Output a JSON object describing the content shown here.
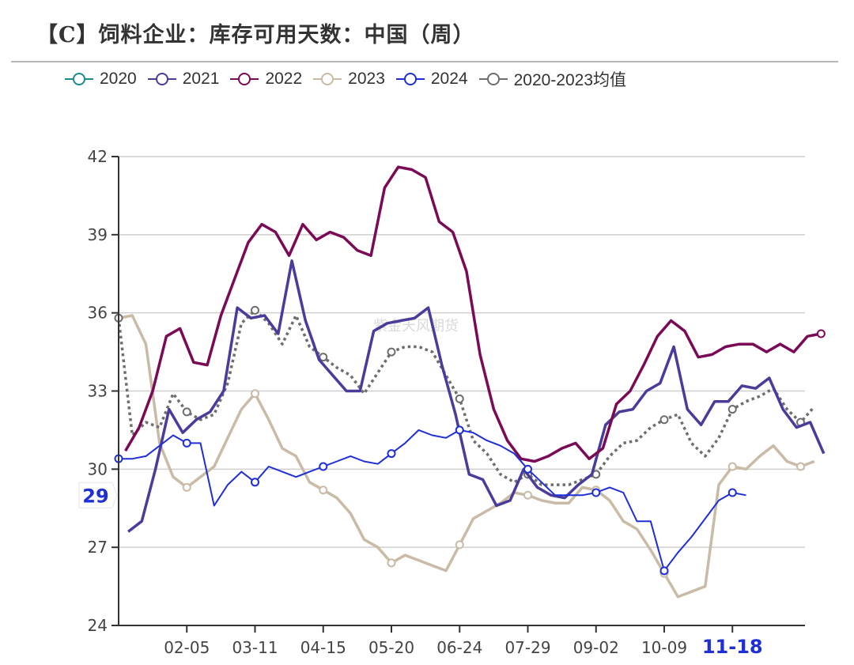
{
  "title": "【C】饲料企业：库存可用天数：中国（周）",
  "watermark": "紫金天风期货",
  "legend": [
    {
      "label": "2020",
      "color": "#1a8c8c"
    },
    {
      "label": "2021",
      "color": "#4b3b9a"
    },
    {
      "label": "2022",
      "color": "#7a0a55"
    },
    {
      "label": "2023",
      "color": "#c9bba6"
    },
    {
      "label": "2024",
      "color": "#1f2fd6"
    },
    {
      "label": "2020-2023均值",
      "color": "#6e6e6e"
    }
  ],
  "y_pointer_label": "29",
  "x_pointer_label": "11-18",
  "chart_data": {
    "type": "line",
    "title": "【C】饲料企业：库存可用天数：中国（周）",
    "xlabel": "",
    "ylabel": "",
    "ylim": [
      24,
      42
    ],
    "yticks": [
      24,
      27,
      30,
      33,
      36,
      39,
      42
    ],
    "xticks": [
      {
        "label": "02-05",
        "week": 5
      },
      {
        "label": "03-11",
        "week": 10
      },
      {
        "label": "04-15",
        "week": 15
      },
      {
        "label": "05-20",
        "week": 20
      },
      {
        "label": "06-24",
        "week": 25
      },
      {
        "label": "07-29",
        "week": 30
      },
      {
        "label": "09-02",
        "week": 35
      },
      {
        "label": "10-09",
        "week": 40
      },
      {
        "label": "11-18",
        "week": 45
      }
    ],
    "grid": true,
    "legend_position": "top",
    "series": [
      {
        "name": "2020",
        "color": "#1a8c8c",
        "width": 3,
        "dash": false,
        "start_week": 0,
        "values": []
      },
      {
        "name": "2021",
        "color": "#4b3b9a",
        "width": 3.5,
        "dash": false,
        "start_week": 0.7,
        "values": [
          27.6,
          28.0,
          30.0,
          32.3,
          31.4,
          31.9,
          32.2,
          33.0,
          36.2,
          35.8,
          35.9,
          35.2,
          38.0,
          35.7,
          34.2,
          33.6,
          33.0,
          33.0,
          35.3,
          35.6,
          35.7,
          35.8,
          36.2,
          34.0,
          32.1,
          29.8,
          29.6,
          28.6,
          28.8,
          30.0,
          29.3,
          29.0,
          28.9,
          29.4,
          29.8,
          31.7,
          32.2,
          32.3,
          33.0,
          33.3,
          34.7,
          32.3,
          31.7,
          32.6,
          32.6,
          33.2,
          33.1,
          33.5,
          32.3,
          31.6,
          31.8,
          30.6
        ]
      },
      {
        "name": "2022",
        "color": "#7a0a55",
        "width": 3.5,
        "dash": false,
        "start_week": 0.5,
        "values": [
          30.7,
          31.6,
          33.0,
          35.1,
          35.4,
          34.1,
          34.0,
          35.9,
          37.3,
          38.7,
          39.4,
          39.1,
          38.2,
          39.4,
          38.8,
          39.1,
          38.9,
          38.4,
          38.2,
          40.8,
          41.6,
          41.5,
          41.2,
          39.5,
          39.1,
          37.6,
          34.4,
          32.3,
          31.1,
          30.4,
          30.3,
          30.5,
          30.8,
          31.0,
          30.4,
          30.8,
          32.5,
          33.0,
          34.0,
          35.1,
          35.7,
          35.3,
          34.3,
          34.4,
          34.7,
          34.8,
          34.8,
          34.5,
          34.8,
          34.5,
          35.1,
          35.2
        ]
      },
      {
        "name": "2023",
        "color": "#c9bba6",
        "width": 3.5,
        "dash": false,
        "start_week": 0,
        "values": [
          35.8,
          35.9,
          34.8,
          31.0,
          29.7,
          29.3,
          29.7,
          30.1,
          31.2,
          32.3,
          32.9,
          31.9,
          30.8,
          30.5,
          29.5,
          29.2,
          28.9,
          28.3,
          27.3,
          27.0,
          26.4,
          26.7,
          26.5,
          26.3,
          26.1,
          27.1,
          28.1,
          28.4,
          28.7,
          29.1,
          29.0,
          28.8,
          28.7,
          28.7,
          29.3,
          29.2,
          28.8,
          28.0,
          27.7,
          26.9,
          26.0,
          25.1,
          25.3,
          25.5,
          29.4,
          30.1,
          30.0,
          30.5,
          30.9,
          30.3,
          30.1,
          30.3
        ]
      },
      {
        "name": "2024",
        "color": "#1f2fd6",
        "width": 2,
        "dash": false,
        "start_week": 0,
        "values": [
          30.4,
          30.4,
          30.5,
          30.9,
          31.3,
          31.0,
          31.0,
          28.6,
          29.4,
          29.9,
          29.5,
          30.1,
          29.9,
          29.7,
          29.9,
          30.1,
          30.3,
          30.5,
          30.3,
          30.2,
          30.6,
          31.0,
          31.5,
          31.3,
          31.2,
          31.5,
          31.4,
          31.1,
          30.9,
          30.6,
          30.0,
          29.5,
          29.0,
          29.0,
          29.0,
          29.1,
          29.3,
          29.1,
          28.0,
          28.0,
          26.1,
          26.8,
          27.4,
          28.1,
          28.8,
          29.1,
          29.0
        ]
      },
      {
        "name": "2020-2023均值",
        "color": "#6e6e6e",
        "width": 3.5,
        "dash": true,
        "start_week": 0,
        "values": [
          35.8,
          31.3,
          31.8,
          31.6,
          32.9,
          32.2,
          31.9,
          32.1,
          33.3,
          35.6,
          36.1,
          35.6,
          34.8,
          35.9,
          34.7,
          34.3,
          33.9,
          33.6,
          32.9,
          33.7,
          34.5,
          34.7,
          34.7,
          34.5,
          33.6,
          32.7,
          31.1,
          30.6,
          29.8,
          29.5,
          29.8,
          29.4,
          29.4,
          29.4,
          29.6,
          29.8,
          30.5,
          31.0,
          31.1,
          31.6,
          31.9,
          32.1,
          31.0,
          30.5,
          31.2,
          32.3,
          32.6,
          32.8,
          33.1,
          32.3,
          31.8,
          32.4
        ]
      }
    ],
    "annotations": [
      {
        "type": "y-pointer",
        "label": "29"
      },
      {
        "type": "x-pointer",
        "label": "11-18"
      }
    ]
  }
}
